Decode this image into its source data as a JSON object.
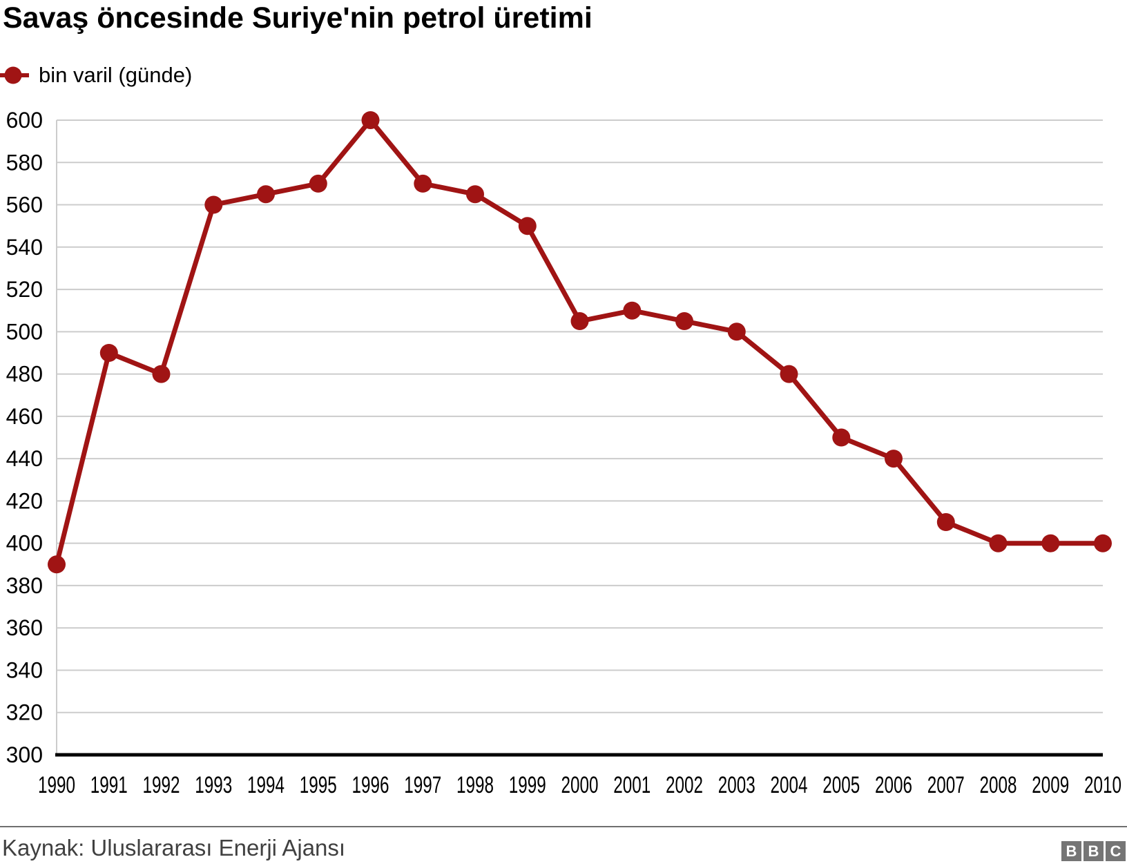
{
  "title": "Savaş öncesinde Suriye'nin petrol üretimi",
  "legend": {
    "label": "bin varil (günde)"
  },
  "footer": {
    "source": "Kaynak: Uluslararası Enerji Ajansı",
    "logo": [
      "B",
      "B",
      "C"
    ]
  },
  "colors": {
    "series": "#a01414",
    "grid": "#cccccc",
    "axis": "#000000",
    "tick_text": "#000000",
    "divider": "#6f6f6f",
    "source_text": "#404040",
    "logo_bg": "#757575",
    "logo_text": "#ffffff"
  },
  "chart_data": {
    "type": "line",
    "title": "Savaş öncesinde Suriye'nin petrol üretimi",
    "xlabel": "",
    "ylabel": "",
    "x": [
      "1990",
      "1991",
      "1992",
      "1993",
      "1994",
      "1995",
      "1996",
      "1997",
      "1998",
      "1999",
      "2000",
      "2001",
      "2002",
      "2003",
      "2004",
      "2005",
      "2006",
      "2007",
      "2008",
      "2009",
      "2010"
    ],
    "series": [
      {
        "name": "bin varil (günde)",
        "values": [
          390,
          490,
          480,
          560,
          565,
          570,
          600,
          570,
          565,
          550,
          505,
          510,
          505,
          500,
          480,
          450,
          440,
          410,
          400,
          400,
          400
        ]
      }
    ],
    "ylim": [
      300,
      600
    ],
    "ytick_step": 20,
    "grid": true,
    "legend_position": "top-left",
    "source": "Kaynak: Uluslararası Enerji Ajansı"
  }
}
